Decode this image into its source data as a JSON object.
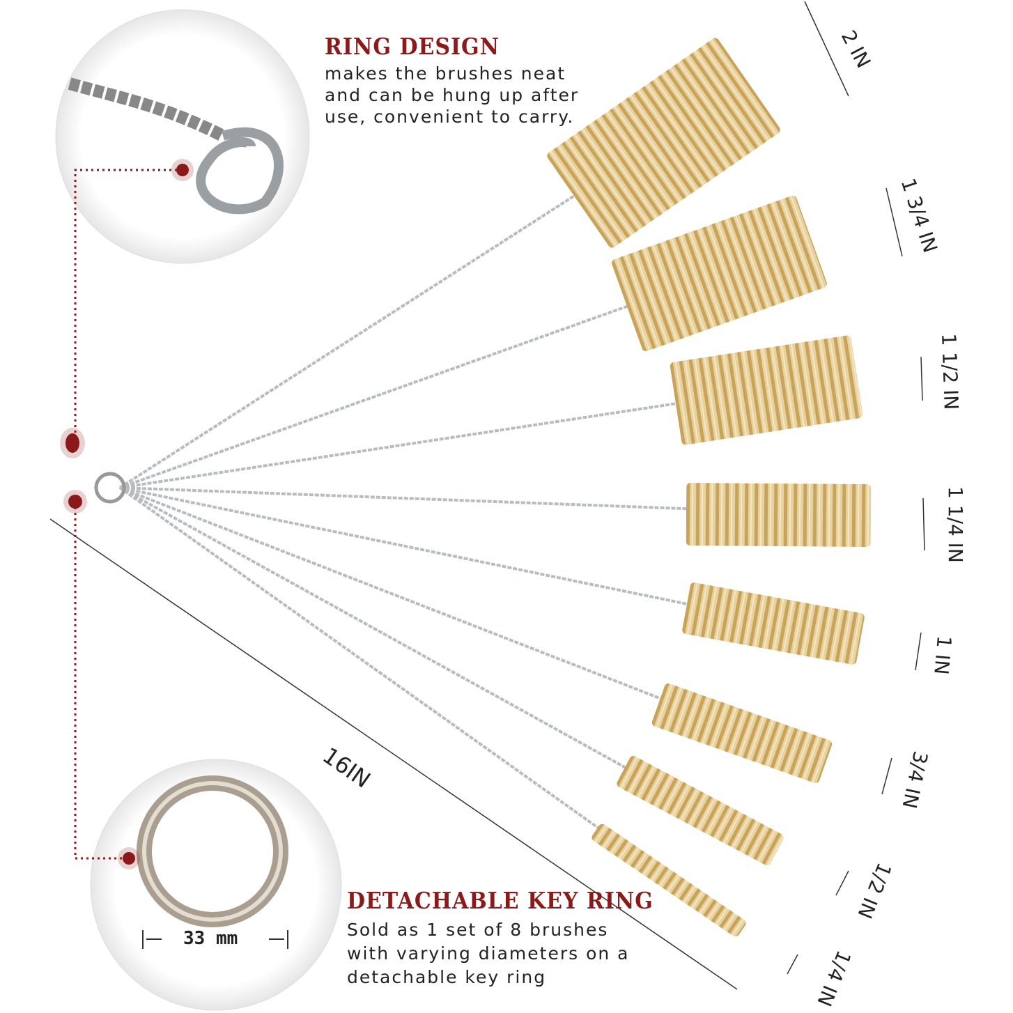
{
  "ring_design": {
    "title": "RING DESIGN",
    "lines": [
      "makes the brushes neat",
      "and can be hung up after",
      "use, convenient to carry."
    ]
  },
  "key_ring": {
    "title": "DETACHABLE KEY RING",
    "lines": [
      "Sold as 1 set of 8 brushes",
      "with varying diameters on a",
      "detachable key ring"
    ],
    "size_label": "33 mm"
  },
  "length_label": "16IN",
  "diameters": [
    "2 IN",
    "1 3/4 IN",
    "1 1/2 IN",
    "1 1/4 IN",
    "1 IN",
    "3/4 IN",
    "1/2 IN",
    "1/4 IN"
  ],
  "colors": {
    "accent": "#8b1a1a",
    "bristle": "#d9b874",
    "wire": "#b8bcc0"
  }
}
